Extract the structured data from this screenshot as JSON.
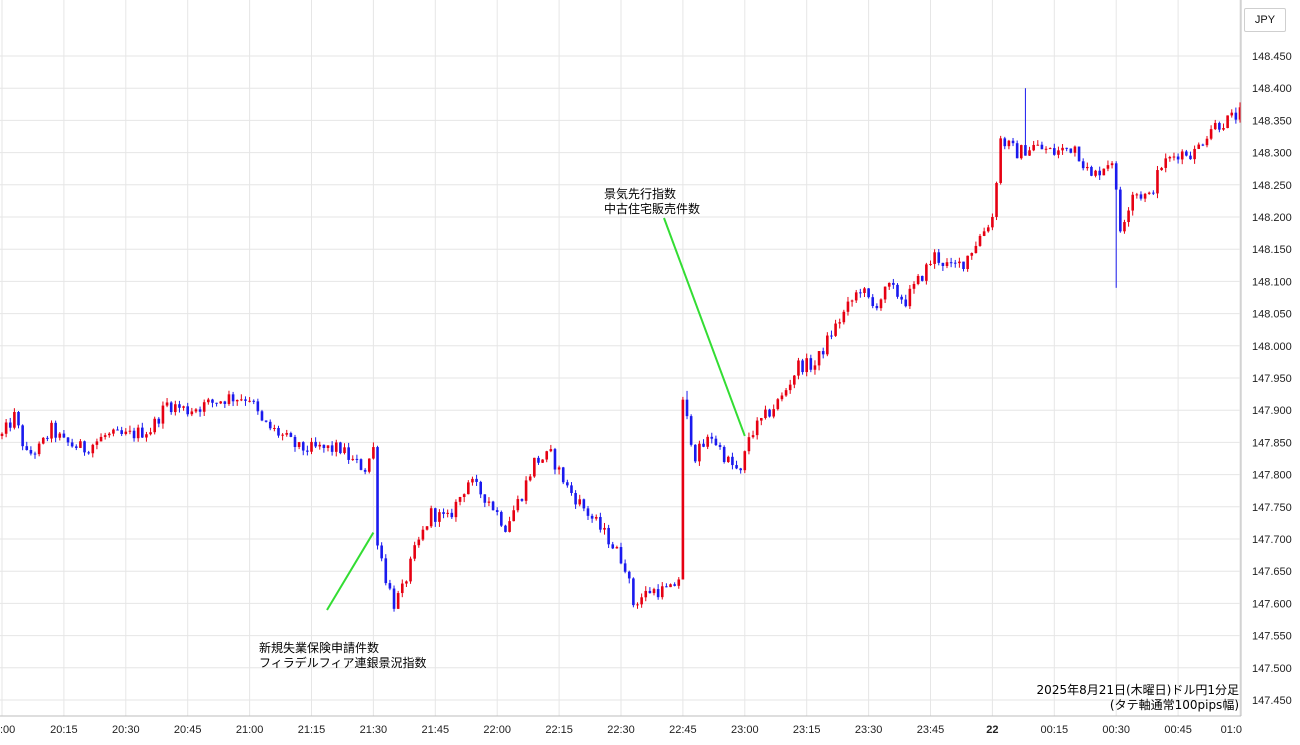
{
  "chart_data": {
    "type": "candlestick",
    "currency": "JPY",
    "y_ticks": [
      "148.450",
      "148.400",
      "148.350",
      "148.300",
      "148.250",
      "148.200",
      "148.150",
      "148.100",
      "148.050",
      "148.000",
      "147.950",
      "147.900",
      "147.850",
      "147.800",
      "147.750",
      "147.700",
      "147.650",
      "147.600",
      "147.550",
      "147.500",
      "147.450"
    ],
    "ylim": [
      147.43,
      148.465
    ],
    "x_ticks": [
      ":00",
      "20:15",
      "20:30",
      "20:45",
      "21:00",
      "21:15",
      "21:30",
      "21:45",
      "22:00",
      "22:15",
      "22:30",
      "22:45",
      "23:00",
      "23:15",
      "23:30",
      "23:45",
      "22",
      "00:15",
      "00:30",
      "00:45",
      "01:0"
    ],
    "bold_x_tick": "22",
    "caption_line1": "2025年8月21日(木曜日)ドル円1分足",
    "caption_line2": "(タテ軸通常100pips幅)",
    "annotations": [
      {
        "lines": [
          "新規失業保険申請件数",
          "フィラデルフィア連銀景況指数"
        ],
        "time": "21:30",
        "price": 147.71
      },
      {
        "lines": [
          "景気先行指数",
          "中古住宅販売件数"
        ],
        "time": "23:00",
        "price": 147.86
      }
    ],
    "path_keypoints": [
      {
        "t": "20:00",
        "p": 147.86
      },
      {
        "t": "20:03",
        "p": 147.89
      },
      {
        "t": "20:06",
        "p": 147.83
      },
      {
        "t": "20:09",
        "p": 147.84
      },
      {
        "t": "20:12",
        "p": 147.87
      },
      {
        "t": "20:15",
        "p": 147.85
      },
      {
        "t": "20:20",
        "p": 147.84
      },
      {
        "t": "20:25",
        "p": 147.86
      },
      {
        "t": "20:30",
        "p": 147.86
      },
      {
        "t": "20:36",
        "p": 147.87
      },
      {
        "t": "20:40",
        "p": 147.91
      },
      {
        "t": "20:45",
        "p": 147.9
      },
      {
        "t": "20:50",
        "p": 147.91
      },
      {
        "t": "20:55",
        "p": 147.92
      },
      {
        "t": "21:00",
        "p": 147.92
      },
      {
        "t": "21:03",
        "p": 147.88
      },
      {
        "t": "21:08",
        "p": 147.86
      },
      {
        "t": "21:12",
        "p": 147.84
      },
      {
        "t": "21:18",
        "p": 147.84
      },
      {
        "t": "21:22",
        "p": 147.84
      },
      {
        "t": "21:25",
        "p": 147.82
      },
      {
        "t": "21:28",
        "p": 147.81
      },
      {
        "t": "21:30",
        "p": 147.84
      },
      {
        "t": "21:31",
        "p": 147.7
      },
      {
        "t": "21:33",
        "p": 147.64
      },
      {
        "t": "21:35",
        "p": 147.6
      },
      {
        "t": "21:37",
        "p": 147.62
      },
      {
        "t": "21:40",
        "p": 147.68
      },
      {
        "t": "21:44",
        "p": 147.74
      },
      {
        "t": "21:48",
        "p": 147.73
      },
      {
        "t": "21:53",
        "p": 147.79
      },
      {
        "t": "21:58",
        "p": 147.76
      },
      {
        "t": "22:02",
        "p": 147.72
      },
      {
        "t": "22:06",
        "p": 147.77
      },
      {
        "t": "22:09",
        "p": 147.82
      },
      {
        "t": "22:13",
        "p": 147.83
      },
      {
        "t": "22:17",
        "p": 147.78
      },
      {
        "t": "22:22",
        "p": 147.74
      },
      {
        "t": "22:27",
        "p": 147.7
      },
      {
        "t": "22:31",
        "p": 147.66
      },
      {
        "t": "22:33",
        "p": 147.6
      },
      {
        "t": "22:37",
        "p": 147.62
      },
      {
        "t": "22:42",
        "p": 147.62
      },
      {
        "t": "22:44",
        "p": 147.64
      },
      {
        "t": "22:45",
        "p": 147.91
      },
      {
        "t": "22:48",
        "p": 147.83
      },
      {
        "t": "22:52",
        "p": 147.86
      },
      {
        "t": "22:56",
        "p": 147.82
      },
      {
        "t": "22:59",
        "p": 147.8
      },
      {
        "t": "23:01",
        "p": 147.86
      },
      {
        "t": "23:05",
        "p": 147.89
      },
      {
        "t": "23:09",
        "p": 147.92
      },
      {
        "t": "23:13",
        "p": 147.97
      },
      {
        "t": "23:17",
        "p": 147.97
      },
      {
        "t": "23:21",
        "p": 148.02
      },
      {
        "t": "23:25",
        "p": 148.06
      },
      {
        "t": "23:28",
        "p": 148.09
      },
      {
        "t": "23:31",
        "p": 148.06
      },
      {
        "t": "23:35",
        "p": 148.09
      },
      {
        "t": "23:39",
        "p": 148.07
      },
      {
        "t": "23:43",
        "p": 148.11
      },
      {
        "t": "23:46",
        "p": 148.14
      },
      {
        "t": "23:50",
        "p": 148.12
      },
      {
        "t": "23:53",
        "p": 148.13
      },
      {
        "t": "23:57",
        "p": 148.17
      },
      {
        "t": "00:00",
        "p": 148.2
      },
      {
        "t": "00:02",
        "p": 148.32
      },
      {
        "t": "00:06",
        "p": 148.3
      },
      {
        "t": "00:10",
        "p": 148.31
      },
      {
        "t": "00:15",
        "p": 148.3
      },
      {
        "t": "00:20",
        "p": 148.31
      },
      {
        "t": "00:24",
        "p": 148.26
      },
      {
        "t": "00:27",
        "p": 148.28
      },
      {
        "t": "00:29",
        "p": 148.29
      },
      {
        "t": "00:31",
        "p": 148.18
      },
      {
        "t": "00:34",
        "p": 148.24
      },
      {
        "t": "00:38",
        "p": 148.23
      },
      {
        "t": "00:41",
        "p": 148.28
      },
      {
        "t": "00:45",
        "p": 148.3
      },
      {
        "t": "00:49",
        "p": 148.3
      },
      {
        "t": "00:53",
        "p": 148.34
      },
      {
        "t": "00:57",
        "p": 148.35
      },
      {
        "t": "01:00",
        "p": 148.36
      }
    ],
    "wick_extremes": [
      {
        "t": "00:08",
        "high": 148.4
      },
      {
        "t": "00:30",
        "low": 148.09
      },
      {
        "t": "22:46",
        "high": 147.93
      }
    ],
    "colors": {
      "up": "#e60012",
      "down": "#1a1aee",
      "annotation_line": "#33dd33",
      "grid": "#e6e6e6"
    },
    "grid": true
  }
}
